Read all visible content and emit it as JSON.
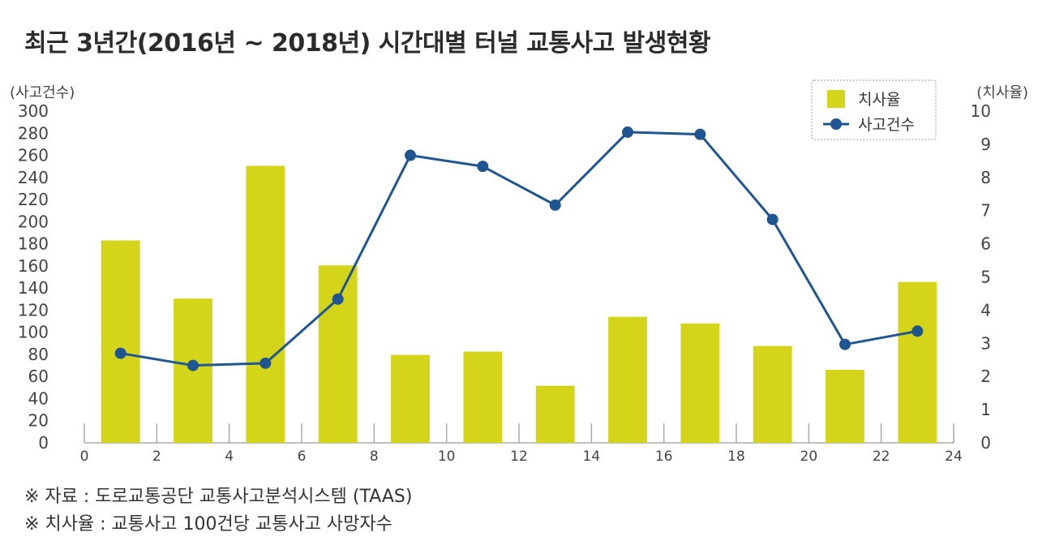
{
  "title": "최근 3년간(2016년 ~ 2018년) 시간대별 터널 교통사고 발생현황",
  "chart_data": {
    "type": "bar",
    "x": [
      1,
      3,
      5,
      7,
      9,
      11,
      13,
      15,
      17,
      19,
      21,
      23
    ],
    "xlim": [
      0,
      24
    ],
    "xticks": [
      "0",
      "2",
      "4",
      "6",
      "8",
      "10",
      "12",
      "14",
      "16",
      "18",
      "20",
      "22",
      "24"
    ],
    "yleft": {
      "label": "(사고건수)",
      "ylim": [
        0,
        300
      ],
      "ticks": [
        "0",
        "20",
        "40",
        "60",
        "80",
        "100",
        "120",
        "140",
        "160",
        "180",
        "200",
        "220",
        "240",
        "260",
        "280",
        "300"
      ]
    },
    "yright": {
      "label": "(치사율)",
      "ylim": [
        0,
        10
      ],
      "ticks": [
        "0",
        "1",
        "2",
        "3",
        "4",
        "5",
        "6",
        "7",
        "8",
        "9",
        "10"
      ]
    },
    "series": [
      {
        "name": "치사율",
        "kind": "bar",
        "axis": "right",
        "color": "#d4d41a",
        "values": [
          6.1,
          4.35,
          8.35,
          5.35,
          2.65,
          2.75,
          1.72,
          3.8,
          3.6,
          2.92,
          2.2,
          4.85
        ]
      },
      {
        "name": "사고건수",
        "kind": "line",
        "axis": "left",
        "color": "#1f5591",
        "values": [
          81,
          70,
          72,
          130,
          260,
          250,
          215,
          281,
          279,
          202,
          89,
          101
        ]
      }
    ],
    "legend": "top-right",
    "grid": false
  },
  "notes": [
    "※ 자료 : 도로교통공단 교통사고분석시스템 (TAAS)",
    "※ 치사율 : 교통사고 100건당 교통사고 사망자수"
  ]
}
